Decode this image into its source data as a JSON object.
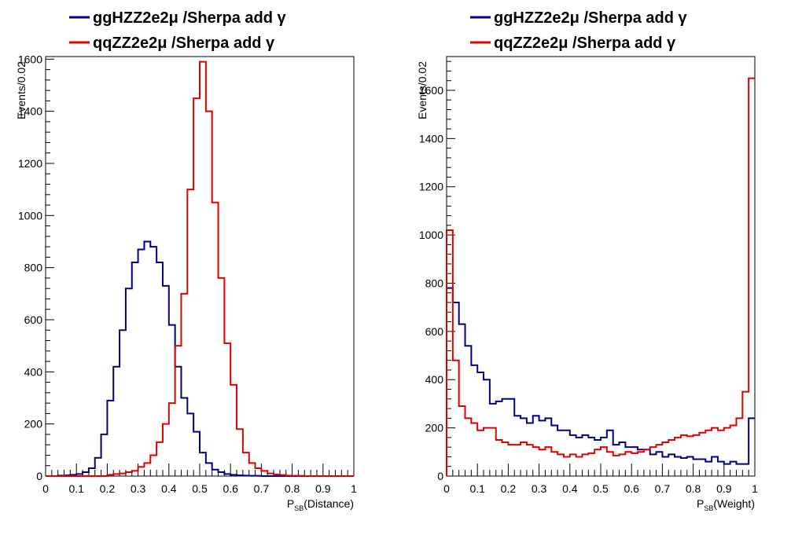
{
  "chart_data": [
    {
      "type": "step-histogram",
      "xlabel": "(Distance)",
      "xlabel_prefix": "P",
      "xlabel_sub": "SB",
      "ylabel": "Events/0.02",
      "xlim": [
        0,
        1
      ],
      "ylim": [
        0,
        1610
      ],
      "bin_width": 0.02,
      "xticks": [
        0,
        0.1,
        0.2,
        0.3,
        0.4,
        0.5,
        0.6,
        0.7,
        0.8,
        0.9,
        1
      ],
      "xtick_labels": [
        "0",
        "0.1",
        "0.2",
        "0.3",
        "0.4",
        "0.5",
        "0.6",
        "0.7",
        "0.8",
        "0.9",
        "1"
      ],
      "yticks": [
        0,
        200,
        400,
        600,
        800,
        1000,
        1200,
        1400,
        1600
      ],
      "ytick_labels": [
        "0",
        "200",
        "400",
        "600",
        "800",
        "1000",
        "1200",
        "1400",
        "1600"
      ],
      "legend": {
        "position": "top-left, above plot"
      },
      "series": [
        {
          "name": "ggHZZ2e2μ /Sherpa add γ",
          "color": "#00007f",
          "values": [
            0,
            0,
            2,
            3,
            5,
            8,
            15,
            30,
            70,
            160,
            290,
            420,
            560,
            720,
            820,
            870,
            900,
            880,
            820,
            730,
            580,
            420,
            300,
            240,
            170,
            90,
            50,
            25,
            15,
            8,
            5,
            3,
            2,
            1,
            1,
            0,
            0,
            0,
            0,
            0,
            0,
            0,
            0,
            0,
            0,
            0,
            0,
            0,
            0,
            0
          ]
        },
        {
          "name": "qqZZ2e2μ /Sherpa add γ",
          "color": "#e00000",
          "values": [
            0,
            0,
            0,
            0,
            0,
            0,
            0,
            0,
            0,
            0,
            5,
            8,
            10,
            15,
            20,
            35,
            50,
            80,
            130,
            200,
            280,
            500,
            700,
            1100,
            1450,
            1590,
            1400,
            1050,
            760,
            510,
            350,
            180,
            90,
            50,
            30,
            20,
            10,
            6,
            4,
            2,
            1,
            1,
            0,
            0,
            0,
            0,
            0,
            0,
            0,
            0
          ]
        }
      ]
    },
    {
      "type": "step-histogram",
      "xlabel": "(Weight)",
      "xlabel_prefix": "P",
      "xlabel_sub": "SB",
      "ylabel": "Events/0.02",
      "xlim": [
        0,
        1
      ],
      "ylim": [
        0,
        1740
      ],
      "bin_width": 0.02,
      "xticks": [
        0,
        0.1,
        0.2,
        0.3,
        0.4,
        0.5,
        0.6,
        0.7,
        0.8,
        0.9,
        1
      ],
      "xtick_labels": [
        "0",
        "0.1",
        "0.2",
        "0.3",
        "0.4",
        "0.5",
        "0.6",
        "0.7",
        "0.8",
        "0.9",
        "1"
      ],
      "yticks": [
        0,
        200,
        400,
        600,
        800,
        1000,
        1200,
        1400,
        1600
      ],
      "ytick_labels": [
        "0",
        "200",
        "400",
        "600",
        "800",
        "1000",
        "1200",
        "1400",
        "1600"
      ],
      "legend": {
        "position": "top-left, above plot"
      },
      "series": [
        {
          "name": "ggHZZ2e2μ /Sherpa add γ",
          "color": "#00007f",
          "values": [
            780,
            720,
            630,
            540,
            460,
            430,
            400,
            300,
            310,
            320,
            320,
            250,
            240,
            220,
            250,
            230,
            240,
            210,
            190,
            190,
            170,
            160,
            170,
            160,
            150,
            160,
            190,
            130,
            140,
            120,
            120,
            110,
            110,
            90,
            100,
            80,
            90,
            80,
            75,
            80,
            70,
            70,
            60,
            80,
            60,
            50,
            60,
            50,
            50,
            240
          ]
        },
        {
          "name": "qqZZ2e2μ /Sherpa add γ",
          "color": "#e00000",
          "values": [
            1020,
            480,
            290,
            240,
            220,
            190,
            200,
            200,
            150,
            140,
            130,
            130,
            140,
            130,
            120,
            110,
            120,
            100,
            90,
            80,
            90,
            80,
            90,
            95,
            110,
            120,
            100,
            85,
            90,
            100,
            95,
            100,
            110,
            120,
            130,
            140,
            150,
            160,
            170,
            165,
            170,
            180,
            190,
            200,
            190,
            200,
            210,
            240,
            350,
            1650
          ]
        }
      ]
    }
  ]
}
